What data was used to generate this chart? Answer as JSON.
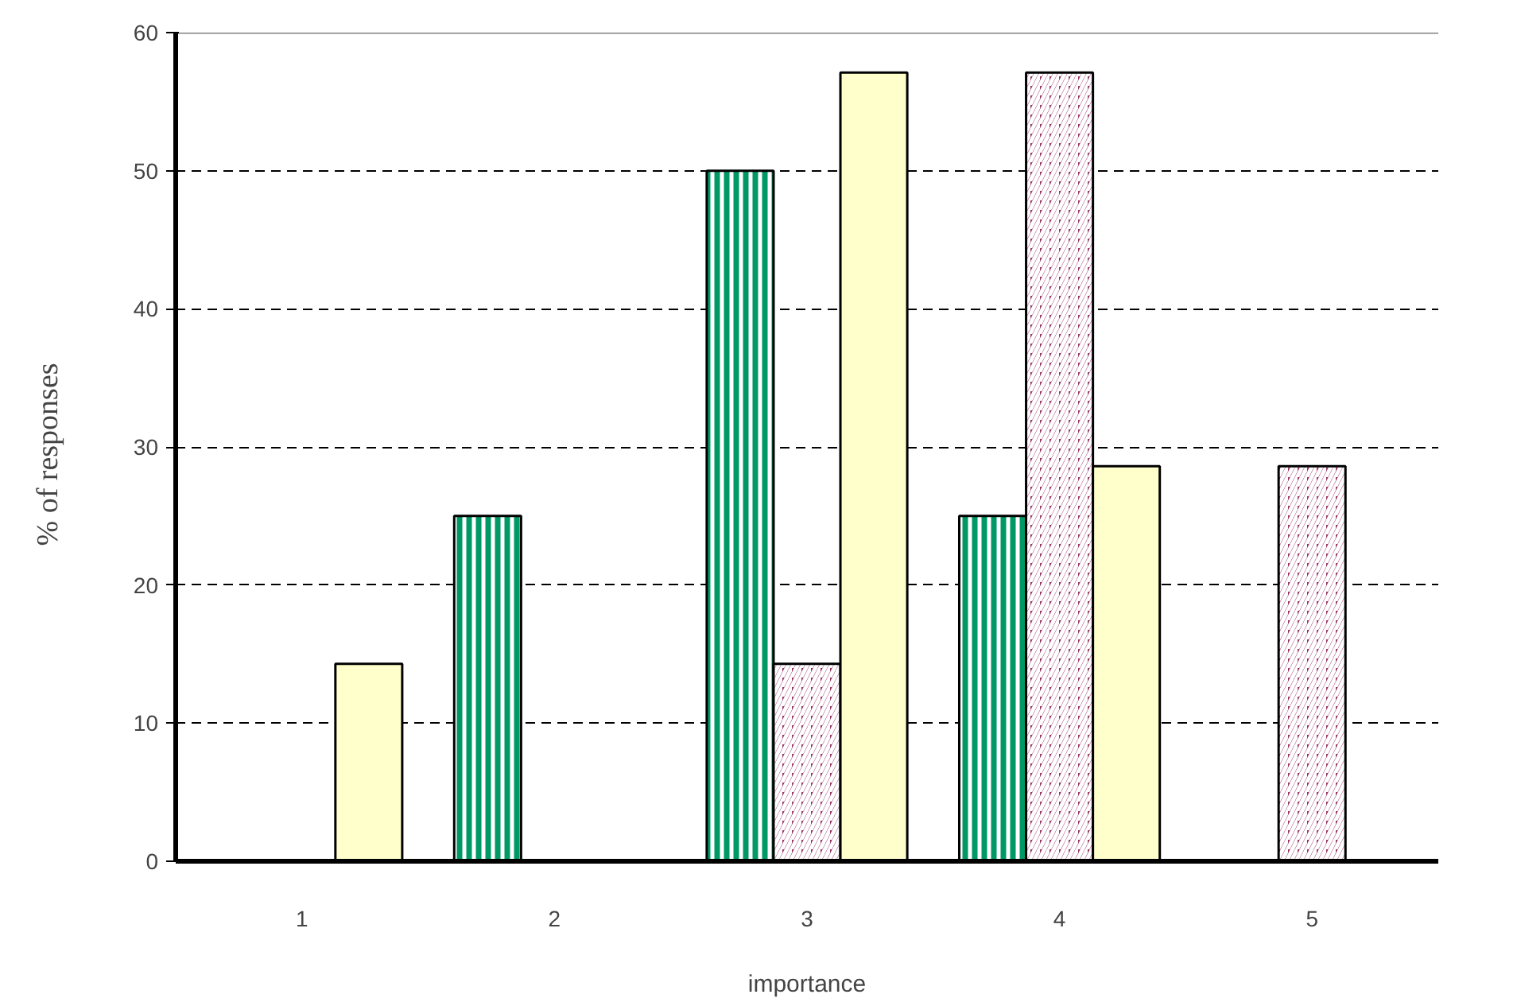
{
  "chart_data": {
    "type": "bar",
    "xlabel": "importance",
    "ylabel": "%  of  responses",
    "categories": [
      "1",
      "2",
      "3",
      "4",
      "5"
    ],
    "series": [
      {
        "color": "#009966",
        "values": [
          null,
          25,
          50,
          25,
          null
        ]
      },
      {
        "color": "#993366",
        "values": [
          null,
          null,
          14.3,
          57.1,
          28.6
        ]
      },
      {
        "color": "#ffffcc",
        "values": [
          14.3,
          null,
          57.1,
          28.6,
          null
        ]
      }
    ],
    "ylim": [
      0,
      60
    ],
    "yticks": [
      0,
      10,
      20,
      30,
      40,
      50,
      60
    ],
    "grid": "y"
  }
}
